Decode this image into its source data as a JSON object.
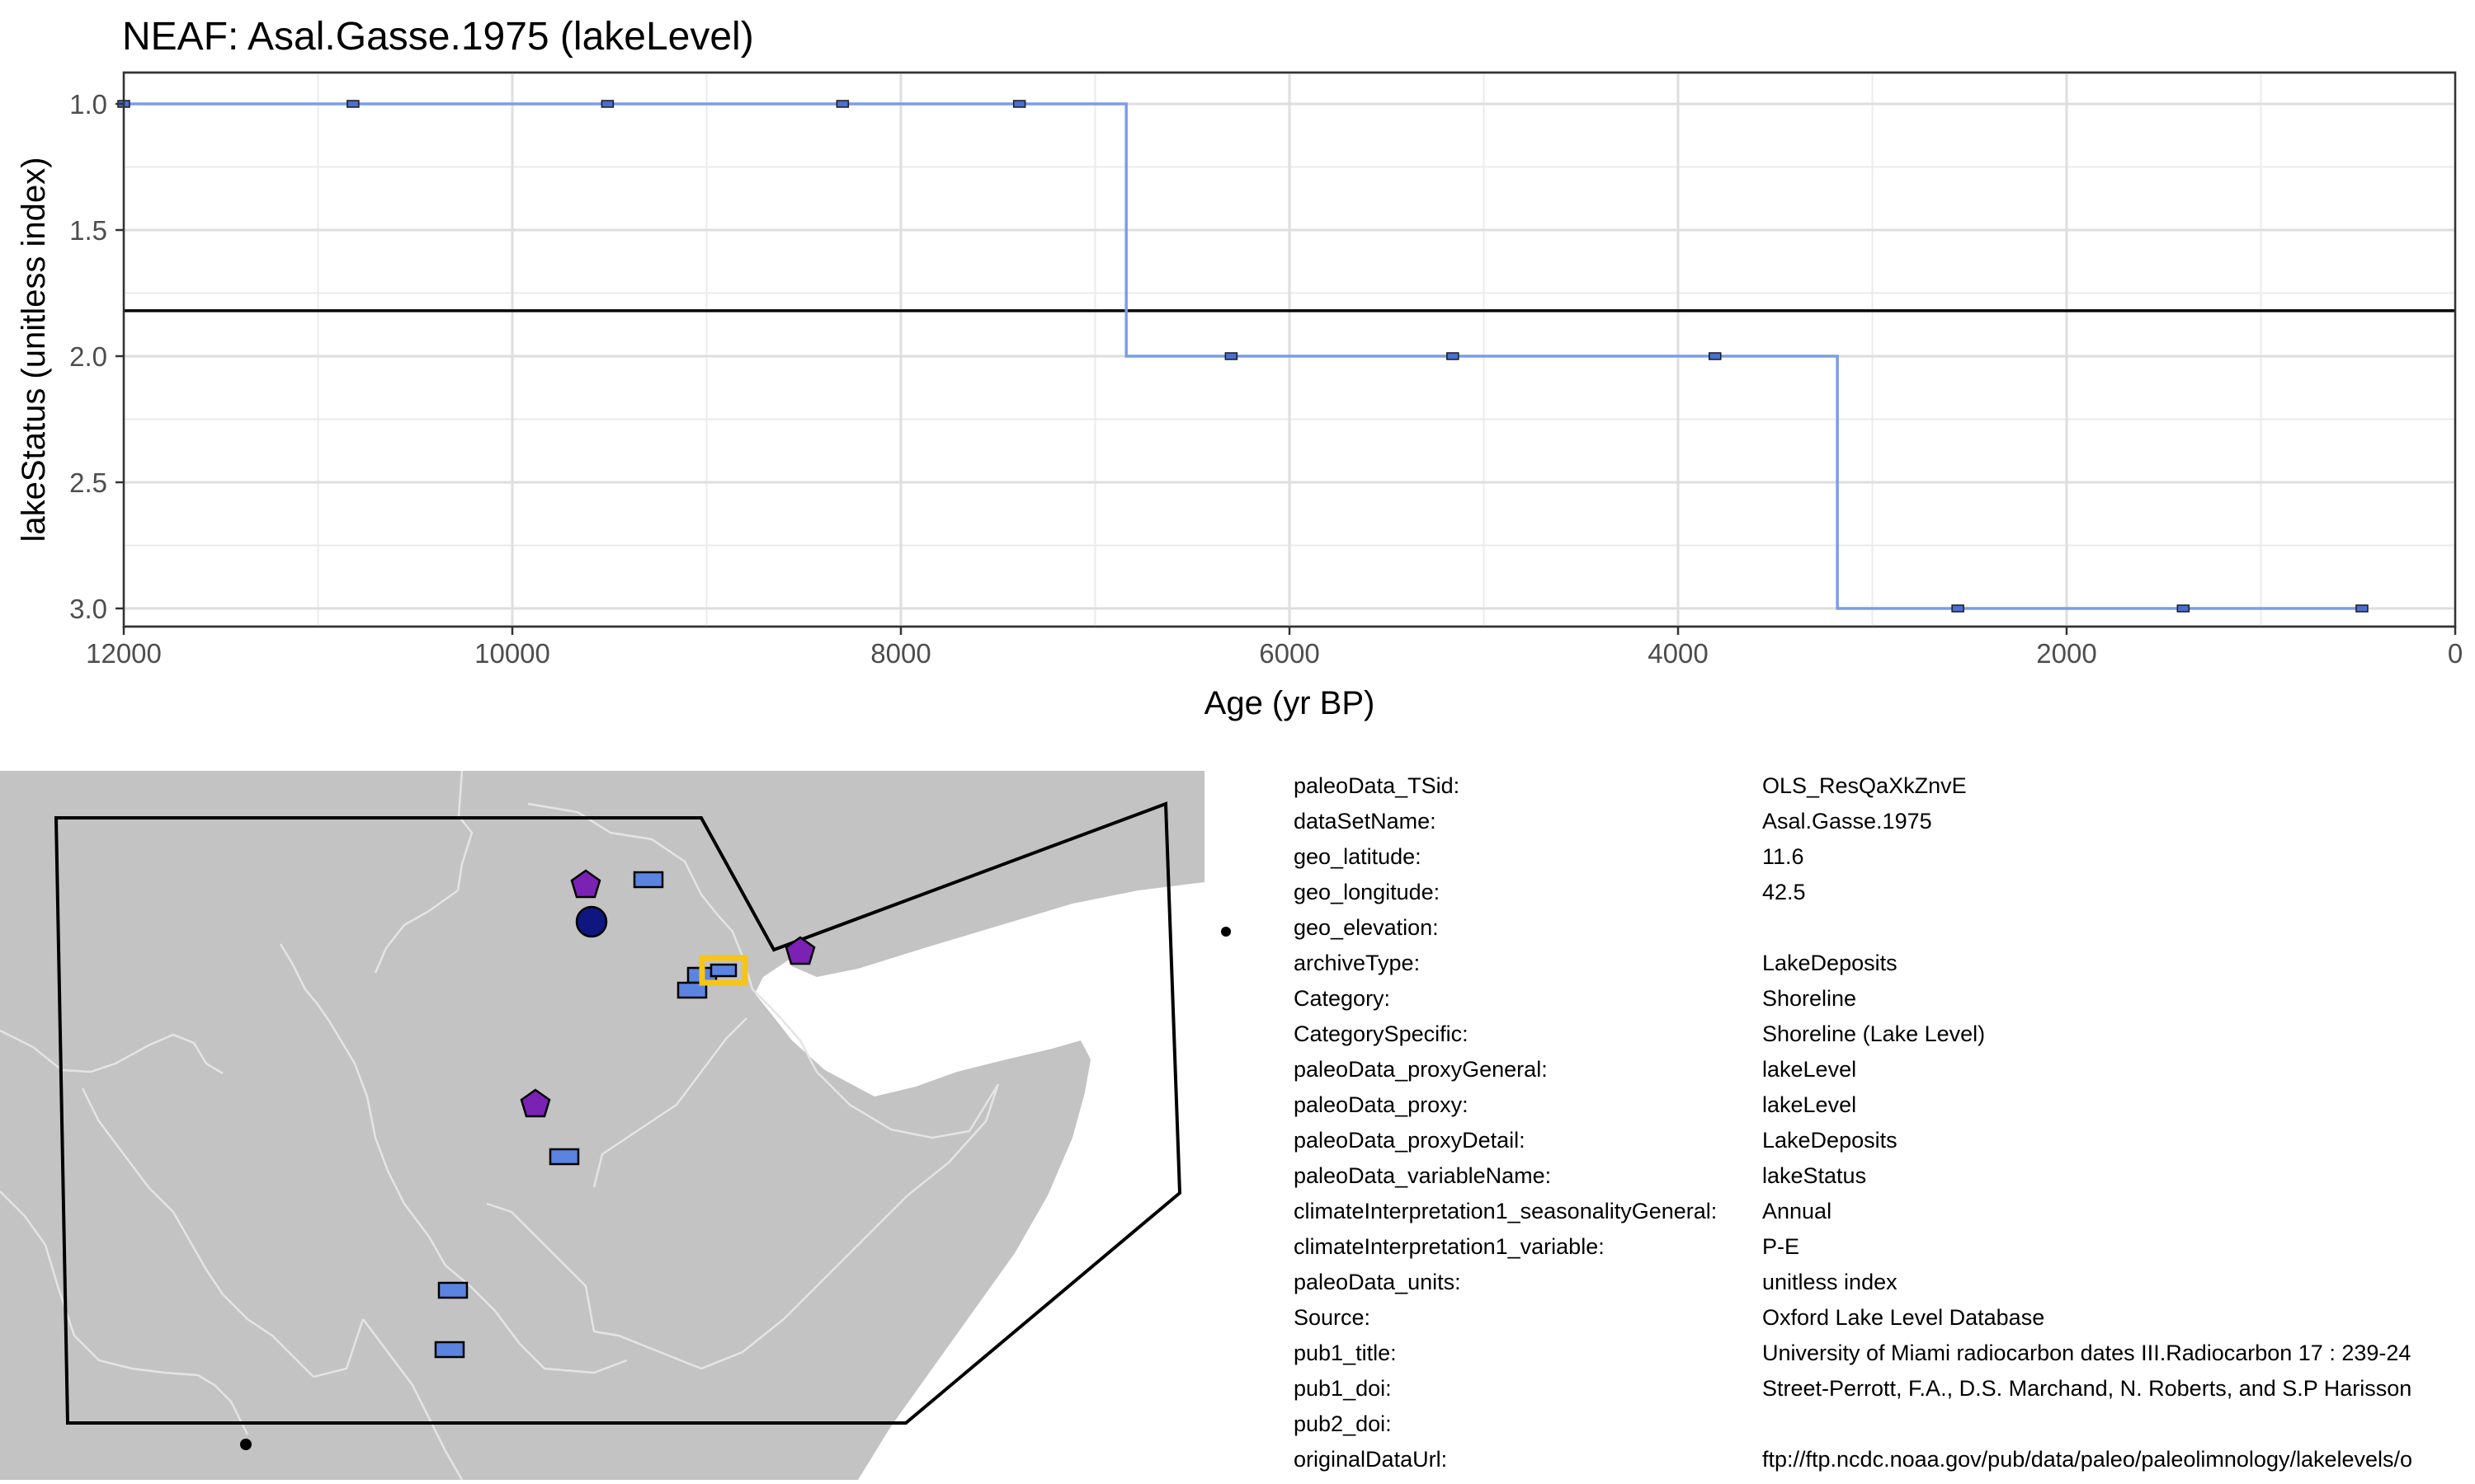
{
  "chart_data": {
    "type": "line",
    "step": true,
    "title": "NEAF: Asal.Gasse.1975 (lakeLevel)",
    "xlabel": "Age (yr BP)",
    "ylabel": "lakeStatus (unitless index)",
    "xlim": [
      12000,
      0
    ],
    "x_reversed": true,
    "ylim": [
      3.0,
      1.0
    ],
    "y_reversed": true,
    "xticks": [
      12000,
      10000,
      8000,
      6000,
      4000,
      2000,
      0
    ],
    "yticks": [
      1.0,
      1.5,
      2.0,
      2.5,
      3.0
    ],
    "ytick_labels": [
      "1.0",
      "1.5",
      "2.0",
      "2.5",
      "3.0"
    ],
    "grid": true,
    "line_color": "#7b9de6",
    "marker_color": "#4a6fd1",
    "reference_line_y": 1.82,
    "series": [
      {
        "x": [
          12000,
          10820,
          9510,
          8300,
          7390,
          6300,
          5160,
          3810,
          2560,
          1400,
          480
        ],
        "y": [
          1,
          1,
          1,
          1,
          1,
          2,
          2,
          2,
          3,
          3,
          3
        ],
        "step_boundaries": [
          6840,
          3180
        ]
      }
    ]
  },
  "map": {
    "land_color": "#c3c3c3",
    "border_color": "#e4e4e4",
    "region_outline_color": "#000000",
    "highlight_color": "#f5c518",
    "site_colors": {
      "rectangle": "#5b84e0",
      "pentagon": "#7b22b5",
      "circle": "#0e1680"
    }
  },
  "metadata": [
    {
      "key": "paleoData_TSid:",
      "value": "OLS_ResQaXkZnvE"
    },
    {
      "key": "dataSetName:",
      "value": "Asal.Gasse.1975"
    },
    {
      "key": "geo_latitude:",
      "value": "11.6"
    },
    {
      "key": "geo_longitude:",
      "value": "42.5"
    },
    {
      "key": "geo_elevation:",
      "value": ""
    },
    {
      "key": "archiveType:",
      "value": "LakeDeposits"
    },
    {
      "key": "Category:",
      "value": "Shoreline"
    },
    {
      "key": "CategorySpecific:",
      "value": "Shoreline (Lake Level)"
    },
    {
      "key": "paleoData_proxyGeneral:",
      "value": "lakeLevel"
    },
    {
      "key": "paleoData_proxy:",
      "value": "lakeLevel"
    },
    {
      "key": "paleoData_proxyDetail:",
      "value": "LakeDeposits"
    },
    {
      "key": "paleoData_variableName:",
      "value": "lakeStatus"
    },
    {
      "key": "climateInterpretation1_seasonalityGeneral:",
      "value": "Annual"
    },
    {
      "key": "climateInterpretation1_variable:",
      "value": "P-E"
    },
    {
      "key": "paleoData_units:",
      "value": "unitless index"
    },
    {
      "key": "Source:",
      "value": "Oxford Lake Level Database"
    },
    {
      "key": "pub1_title:",
      "value": "University of Miami radiocarbon dates III.Radiocarbon 17 : 239-24"
    },
    {
      "key": "pub1_doi:",
      "value": "Street-Perrott, F.A., D.S. Marchand, N. Roberts, and S.P Harisson"
    },
    {
      "key": "pub2_doi:",
      "value": ""
    },
    {
      "key": "originalDataUrl:",
      "value": "ftp://ftp.ncdc.noaa.gov/pub/data/paleo/paleolimnology/lakelevels/o"
    }
  ]
}
